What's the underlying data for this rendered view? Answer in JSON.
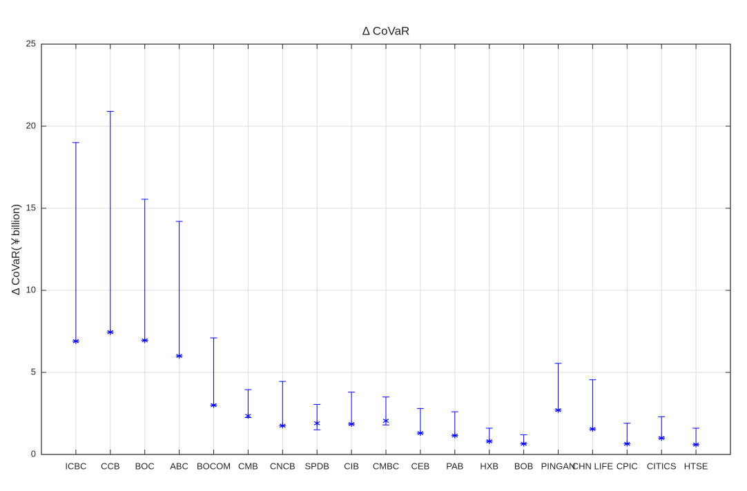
{
  "chart_data": {
    "type": "errorbar",
    "title": "Δ CoVaR",
    "y_label": "Δ CoVaR(￥billion)",
    "categories": [
      "ICBC",
      "CCB",
      "BOC",
      "ABC",
      "BOCOM",
      "CMB",
      "CNCB",
      "SPDB",
      "CIB",
      "CMBC",
      "CEB",
      "PAB",
      "HXB",
      "BOB",
      "PINGAN",
      "CHN LIFE",
      "CPIC",
      "CITICS",
      "HTSE"
    ],
    "series": [
      {
        "color": "#0000ff",
        "values": [
          6.9,
          7.45,
          6.95,
          6.0,
          3.0,
          2.35,
          1.75,
          1.9,
          1.85,
          2.05,
          1.3,
          1.15,
          0.8,
          0.65,
          2.7,
          1.55,
          0.65,
          1.0,
          0.6
        ],
        "lower": [
          6.9,
          7.45,
          6.95,
          6.0,
          3.0,
          2.25,
          1.75,
          1.5,
          1.85,
          1.8,
          1.3,
          1.15,
          0.8,
          0.65,
          2.7,
          1.55,
          0.65,
          1.0,
          0.6
        ],
        "upper": [
          19.0,
          20.9,
          15.55,
          14.2,
          7.1,
          3.95,
          4.45,
          3.05,
          3.8,
          3.5,
          2.8,
          2.6,
          1.6,
          1.2,
          5.55,
          4.55,
          1.9,
          2.3,
          1.6
        ]
      }
    ],
    "ylim": [
      0,
      25
    ],
    "yticks": [
      0,
      5,
      10,
      15,
      20,
      25
    ],
    "grid": true
  }
}
